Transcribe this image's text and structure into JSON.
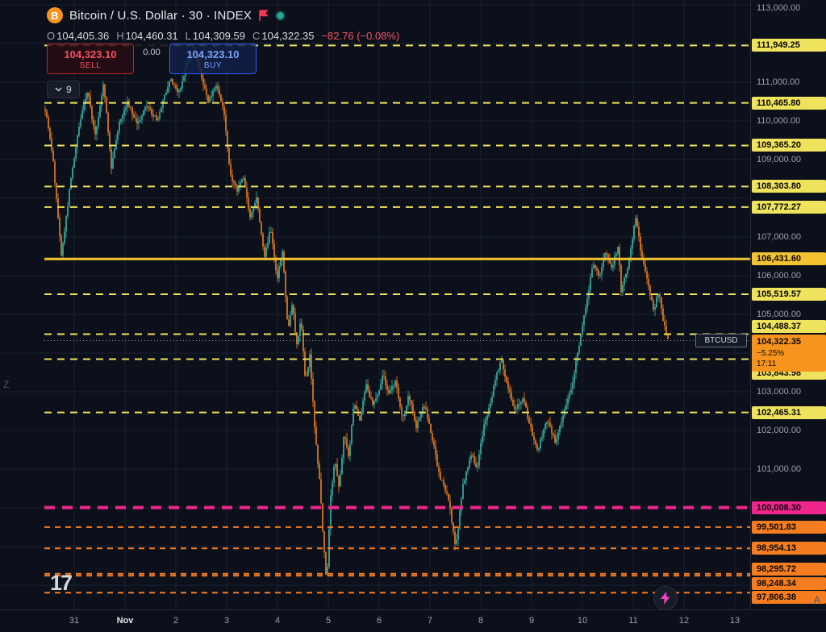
{
  "header": {
    "symbol_title": "Bitcoin / U.S. Dollar · 30 · INDEX",
    "symbol_logo_letter": "B",
    "ohlc": {
      "o_label": "O",
      "o": "104,405.36",
      "h_label": "H",
      "h": "104,460.31",
      "l_label": "L",
      "l": "104,309.59",
      "c_label": "C",
      "c": "104,322.35",
      "change": "−82.76 (−0.08%)"
    },
    "trade_panel": {
      "sell_price": "104,323.10",
      "sell_label": "SELL",
      "spread": "0.00",
      "buy_price": "104,323.10",
      "buy_label": "BUY"
    },
    "objects_count": "9"
  },
  "chart": {
    "colors": {
      "yellow": "#efe25d",
      "gold": "#f2c230",
      "pink": "#f0258c",
      "orange": "#f57d20",
      "current": "#f7941d",
      "grid": "#1a2030",
      "background": "#0c101b"
    },
    "levels": [
      {
        "price": 111949.25,
        "label": "111,949.25",
        "color": "yellow",
        "style": "dashed"
      },
      {
        "price": 110465.8,
        "label": "110,465.80",
        "color": "yellow",
        "style": "dashed"
      },
      {
        "price": 109365.2,
        "label": "109,365.20",
        "color": "yellow",
        "style": "dashed"
      },
      {
        "price": 108303.8,
        "label": "108,303.80",
        "color": "yellow",
        "style": "dashed"
      },
      {
        "price": 107772.27,
        "label": "107,772.27",
        "color": "yellow",
        "style": "dashed"
      },
      {
        "price": 106431.6,
        "label": "106,431.60",
        "color": "gold",
        "style": "solid"
      },
      {
        "price": 105519.57,
        "label": "105,519.57",
        "color": "yellow",
        "style": "dashed"
      },
      {
        "price": 104488.37,
        "label": "104,488.37",
        "color": "yellow",
        "style": "dashed",
        "label_dy": -10
      },
      {
        "price": 103843.98,
        "label": "103,843.98",
        "color": "yellow",
        "style": "dashed",
        "label_dy": 18
      },
      {
        "price": 102465.31,
        "label": "102,465.31",
        "color": "yellow",
        "style": "dashed"
      },
      {
        "price": 100008.3,
        "label": "100,008.30",
        "color": "pink",
        "style": "dashed-bold"
      },
      {
        "price": 99501.83,
        "label": "99,501.83",
        "color": "orange",
        "style": "dashed"
      },
      {
        "price": 98954.13,
        "label": "98,954.13",
        "color": "orange",
        "style": "dashed"
      },
      {
        "price": 98295.72,
        "label": "98,295.72",
        "color": "orange",
        "style": "dashed",
        "label_dy": -6
      },
      {
        "price": 98248.34,
        "label": "98,248.34",
        "color": "orange",
        "style": "dashed",
        "label_dy": 10
      },
      {
        "price": 97806.38,
        "label": "97,806.38",
        "color": "orange",
        "style": "dashed",
        "label_dy": 6
      }
    ],
    "current_price": {
      "price": 104322.35,
      "label": "104,322.35",
      "change_pct": "−5.25%",
      "countdown": "17:11",
      "symbol_tag": "BTCUSD"
    },
    "axis_ticks": [
      {
        "price": 113000,
        "label": "113,000.00"
      },
      {
        "price": 111000,
        "label": "111,000.00"
      },
      {
        "price": 110000,
        "label": "110,000.00"
      },
      {
        "price": 109000,
        "label": "109,000.00"
      },
      {
        "price": 107000,
        "label": "107,000.00"
      },
      {
        "price": 106000,
        "label": "106,000.00"
      },
      {
        "price": 105000,
        "label": "105,000.00"
      },
      {
        "price": 103000,
        "label": "103,000.00"
      },
      {
        "price": 102000,
        "label": "102,000.00"
      },
      {
        "price": 101000,
        "label": "101,000.00"
      }
    ],
    "time_labels": [
      "31",
      "Nov",
      "2",
      "3",
      "4",
      "5",
      "6",
      "7",
      "8",
      "9",
      "10",
      "11",
      "12",
      "13"
    ],
    "edge_letters": {
      "left": "Z",
      "bottom_right": "A"
    }
  },
  "chart_data": {
    "type": "candlestick",
    "symbol": "BTCUSD INDEX",
    "interval": "30",
    "up_color": "#3db8aa",
    "down_color": "#f08222",
    "visible_price_range": [
      97500,
      113200
    ],
    "price_path": [
      [
        0.0,
        110300
      ],
      [
        0.012,
        109100
      ],
      [
        0.026,
        106500
      ],
      [
        0.042,
        108600
      ],
      [
        0.056,
        110000
      ],
      [
        0.068,
        110800
      ],
      [
        0.08,
        109600
      ],
      [
        0.094,
        111000
      ],
      [
        0.106,
        108800
      ],
      [
        0.119,
        110000
      ],
      [
        0.132,
        110500
      ],
      [
        0.148,
        109900
      ],
      [
        0.163,
        110400
      ],
      [
        0.18,
        110000
      ],
      [
        0.2,
        111100
      ],
      [
        0.214,
        110700
      ],
      [
        0.23,
        111600
      ],
      [
        0.239,
        111850
      ],
      [
        0.25,
        111200
      ],
      [
        0.262,
        110500
      ],
      [
        0.274,
        110900
      ],
      [
        0.287,
        110300
      ],
      [
        0.297,
        108600
      ],
      [
        0.308,
        108200
      ],
      [
        0.318,
        108600
      ],
      [
        0.329,
        107500
      ],
      [
        0.34,
        108000
      ],
      [
        0.352,
        106500
      ],
      [
        0.362,
        107200
      ],
      [
        0.372,
        105900
      ],
      [
        0.381,
        106600
      ],
      [
        0.39,
        104600
      ],
      [
        0.397,
        105300
      ],
      [
        0.404,
        104200
      ],
      [
        0.411,
        104900
      ],
      [
        0.418,
        103200
      ],
      [
        0.425,
        104000
      ],
      [
        0.433,
        102000
      ],
      [
        0.44,
        100800
      ],
      [
        0.447,
        99100
      ],
      [
        0.452,
        97950
      ],
      [
        0.458,
        100200
      ],
      [
        0.465,
        101300
      ],
      [
        0.472,
        100500
      ],
      [
        0.48,
        101900
      ],
      [
        0.488,
        101300
      ],
      [
        0.496,
        102800
      ],
      [
        0.505,
        102200
      ],
      [
        0.515,
        103200
      ],
      [
        0.525,
        102700
      ],
      [
        0.534,
        102900
      ],
      [
        0.542,
        103450
      ],
      [
        0.552,
        102900
      ],
      [
        0.562,
        103300
      ],
      [
        0.574,
        102300
      ],
      [
        0.584,
        102900
      ],
      [
        0.596,
        102100
      ],
      [
        0.608,
        102700
      ],
      [
        0.615,
        102300
      ],
      [
        0.625,
        101500
      ],
      [
        0.632,
        100900
      ],
      [
        0.648,
        100200
      ],
      [
        0.659,
        98900
      ],
      [
        0.671,
        100600
      ],
      [
        0.684,
        101400
      ],
      [
        0.693,
        101000
      ],
      [
        0.704,
        102100
      ],
      [
        0.716,
        102800
      ],
      [
        0.723,
        103300
      ],
      [
        0.732,
        103850
      ],
      [
        0.742,
        103200
      ],
      [
        0.755,
        102500
      ],
      [
        0.768,
        102900
      ],
      [
        0.774,
        102400
      ],
      [
        0.782,
        101900
      ],
      [
        0.791,
        101500
      ],
      [
        0.806,
        102300
      ],
      [
        0.819,
        101700
      ],
      [
        0.832,
        102400
      ],
      [
        0.845,
        103100
      ],
      [
        0.861,
        104500
      ],
      [
        0.871,
        105500
      ],
      [
        0.88,
        106300
      ],
      [
        0.89,
        106000
      ],
      [
        0.899,
        106600
      ],
      [
        0.91,
        106200
      ],
      [
        0.92,
        106800
      ],
      [
        0.925,
        105600
      ],
      [
        0.938,
        106400
      ],
      [
        0.948,
        107550
      ],
      [
        0.957,
        106600
      ],
      [
        0.968,
        105800
      ],
      [
        0.977,
        105100
      ],
      [
        0.985,
        105600
      ],
      [
        0.994,
        104700
      ],
      [
        1.0,
        104322
      ]
    ]
  },
  "footer": {
    "logo_text": "17",
    "quick_action": "lightning-bolt"
  }
}
